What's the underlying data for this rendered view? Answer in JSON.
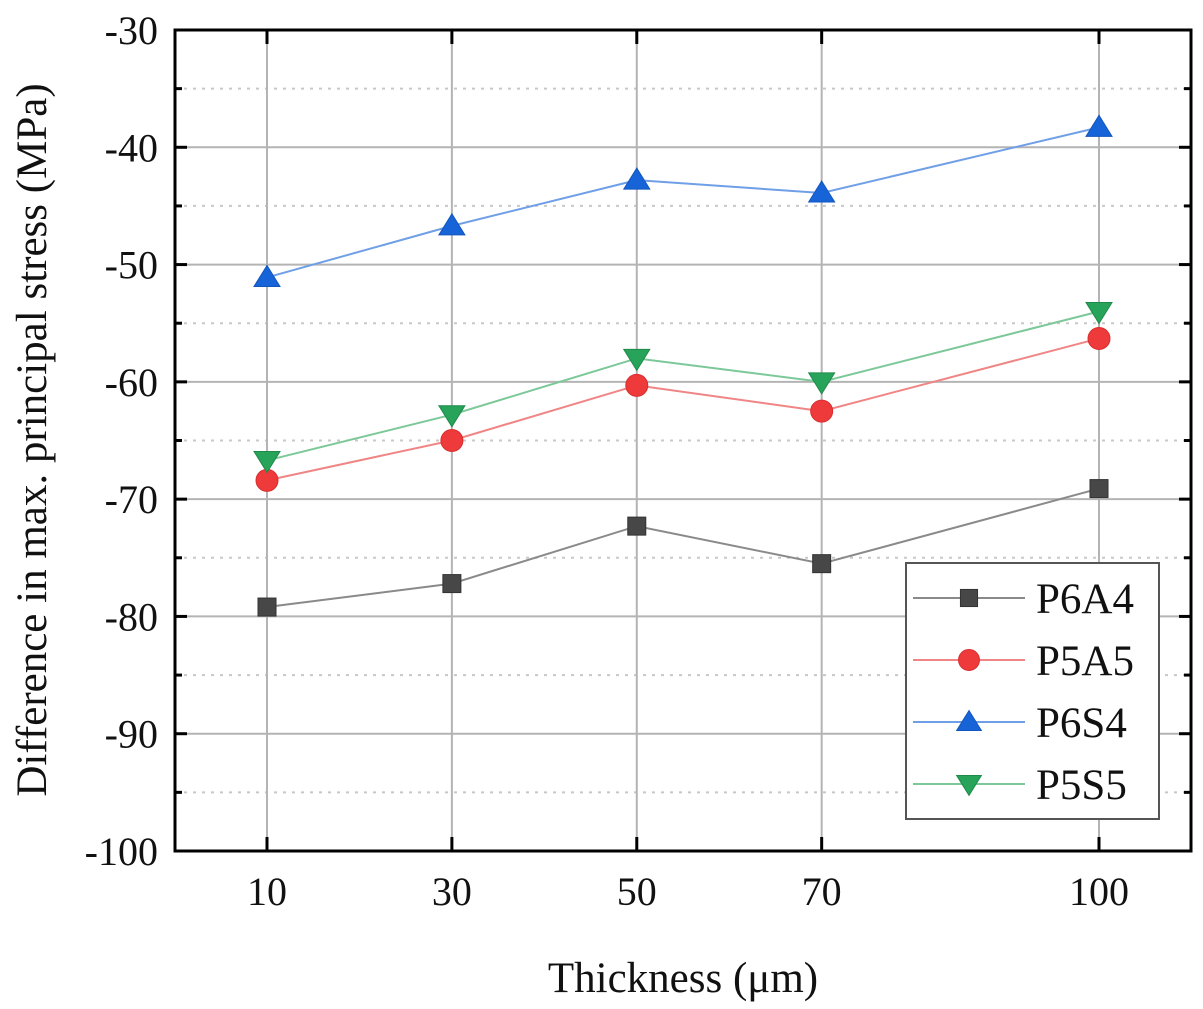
{
  "chart_data": {
    "type": "line",
    "title": "",
    "xlabel": "Thickness (μm)",
    "ylabel": "Difference in max. principal stress (MPa)",
    "x": [
      10,
      30,
      50,
      70,
      100
    ],
    "x_tick_labels": [
      "10",
      "30",
      "50",
      "70",
      "100"
    ],
    "xlim": [
      0,
      115
    ],
    "ylim": [
      -100,
      -30
    ],
    "y_ticks": [
      -30,
      -40,
      -50,
      -60,
      -70,
      -80,
      -90,
      -100
    ],
    "y_tick_labels": [
      "-30",
      "-40",
      "-50",
      "-60",
      "-70",
      "-80",
      "-90",
      "-100"
    ],
    "y_minor_ticks": [
      -35,
      -45,
      -55,
      -65,
      -75,
      -85,
      -95
    ],
    "grid": {
      "major": true,
      "minor_dotted": true
    },
    "legend_position": "bottom-right",
    "series": [
      {
        "name": "P6A4",
        "marker": "square",
        "color": "#474747",
        "line_color": "#8a8a8a",
        "values": [
          -79.2,
          -77.2,
          -72.3,
          -75.5,
          -69.1
        ]
      },
      {
        "name": "P5A5",
        "marker": "circle",
        "color": "#ee3a3a",
        "line_color": "#f08585",
        "values": [
          -68.4,
          -65.0,
          -60.3,
          -62.5,
          -56.3
        ]
      },
      {
        "name": "P6S4",
        "marker": "triangle-up",
        "color": "#1764d8",
        "line_color": "#6f9fe6",
        "values": [
          -51.1,
          -46.7,
          -42.8,
          -43.9,
          -38.3
        ]
      },
      {
        "name": "P5S5",
        "marker": "triangle-down",
        "color": "#27a35a",
        "line_color": "#7cc899",
        "values": [
          -66.7,
          -62.8,
          -58.0,
          -60.0,
          -54.0
        ]
      }
    ]
  }
}
